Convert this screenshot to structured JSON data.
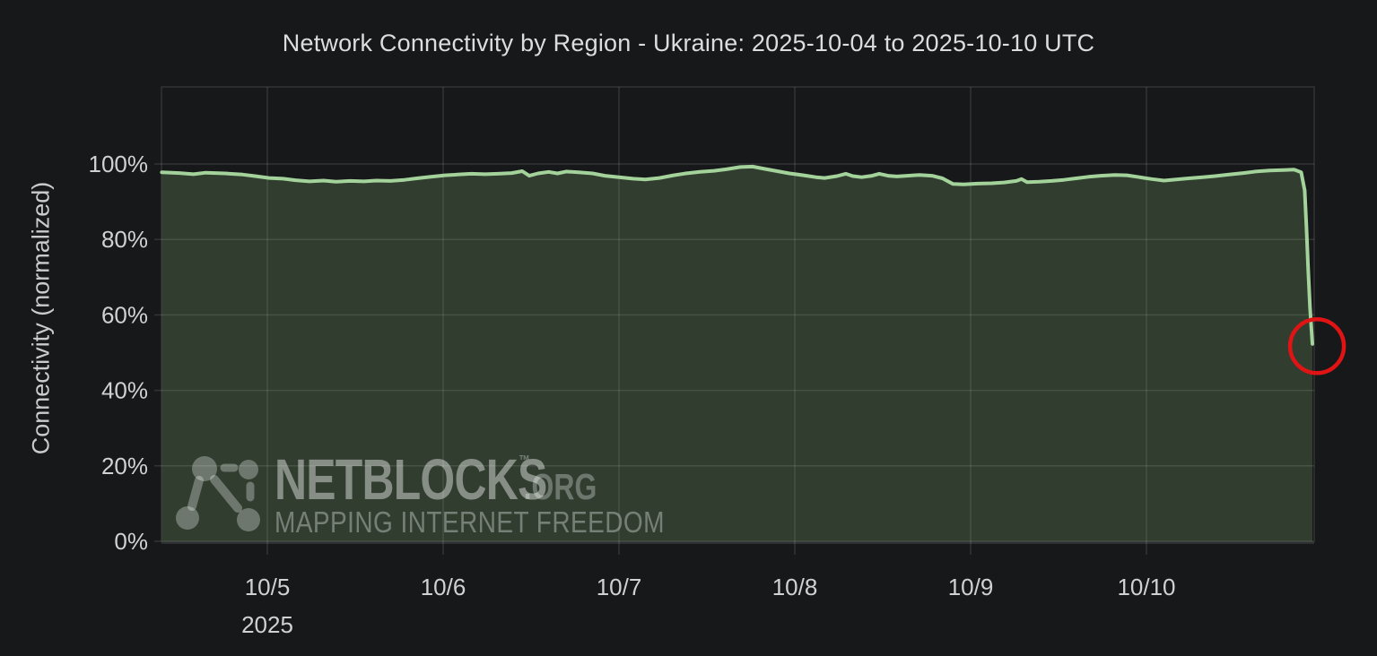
{
  "colors": {
    "background": "#17181a",
    "grid": "rgba(255,255,255,0.12)",
    "axis_line": "rgba(255,255,255,0.10)",
    "tick_text": "#cfd1d2",
    "title_text": "#dcdddf",
    "y_axis_title_text": "#c9cbcc",
    "line": "#a3d29a",
    "fill": "#8cc57c",
    "annotation": "#e01414",
    "watermark": "rgba(255,255,255,0.36)"
  },
  "watermark": {
    "brand": "NETBLOCKS",
    "tm": "TM",
    "org": ".ORG",
    "tagline": "MAPPING INTERNET FREEDOM"
  },
  "chart_data": {
    "type": "area",
    "title": "Network Connectivity by Region - Ukraine: 2025-10-04 to 2025-10-10 UTC",
    "xlabel": "",
    "ylabel": "Connectivity (normalized)",
    "grid": true,
    "legend": "none",
    "ylim": [
      0,
      120
    ],
    "x_unit": "decimal days since 2025-10-04 00:00 UTC",
    "xlim": [
      0.398,
      6.944
    ],
    "y_ticks": [
      {
        "value": 0,
        "label": "0%"
      },
      {
        "value": 20,
        "label": "20%"
      },
      {
        "value": 40,
        "label": "40%"
      },
      {
        "value": 60,
        "label": "60%"
      },
      {
        "value": 80,
        "label": "80%"
      },
      {
        "value": 100,
        "label": "100%"
      }
    ],
    "x_ticks": [
      {
        "t": 1,
        "label": "10/5",
        "sub": "2025"
      },
      {
        "t": 2,
        "label": "10/6"
      },
      {
        "t": 3,
        "label": "10/7"
      },
      {
        "t": 4,
        "label": "10/8"
      },
      {
        "t": 5,
        "label": "10/9"
      },
      {
        "t": 6,
        "label": "10/10"
      }
    ],
    "series": [
      {
        "name": "Ukraine network connectivity (%)",
        "color": "#a3d29a",
        "fill_color": "#8cc57c",
        "fill_opacity": 0.22,
        "points": [
          [
            0.4,
            97.8
          ],
          [
            0.5,
            97.6
          ],
          [
            0.58,
            97.3
          ],
          [
            0.65,
            97.7
          ],
          [
            0.76,
            97.5
          ],
          [
            0.86,
            97.2
          ],
          [
            0.93,
            96.8
          ],
          [
            1.01,
            96.3
          ],
          [
            1.09,
            96.1
          ],
          [
            1.16,
            95.7
          ],
          [
            1.24,
            95.4
          ],
          [
            1.32,
            95.6
          ],
          [
            1.39,
            95.3
          ],
          [
            1.47,
            95.5
          ],
          [
            1.55,
            95.4
          ],
          [
            1.62,
            95.6
          ],
          [
            1.7,
            95.5
          ],
          [
            1.78,
            95.8
          ],
          [
            1.85,
            96.2
          ],
          [
            1.93,
            96.6
          ],
          [
            2.01,
            97.0
          ],
          [
            2.08,
            97.2
          ],
          [
            2.16,
            97.4
          ],
          [
            2.24,
            97.3
          ],
          [
            2.31,
            97.4
          ],
          [
            2.39,
            97.6
          ],
          [
            2.45,
            98.1
          ],
          [
            2.49,
            96.9
          ],
          [
            2.54,
            97.5
          ],
          [
            2.6,
            97.9
          ],
          [
            2.65,
            97.5
          ],
          [
            2.7,
            98.0
          ],
          [
            2.77,
            97.8
          ],
          [
            2.85,
            97.5
          ],
          [
            2.92,
            96.9
          ],
          [
            3.0,
            96.5
          ],
          [
            3.08,
            96.1
          ],
          [
            3.15,
            95.9
          ],
          [
            3.23,
            96.3
          ],
          [
            3.31,
            97.0
          ],
          [
            3.38,
            97.5
          ],
          [
            3.46,
            97.9
          ],
          [
            3.54,
            98.2
          ],
          [
            3.61,
            98.6
          ],
          [
            3.69,
            99.2
          ],
          [
            3.76,
            99.3
          ],
          [
            3.82,
            98.8
          ],
          [
            3.89,
            98.2
          ],
          [
            3.97,
            97.5
          ],
          [
            4.05,
            97.0
          ],
          [
            4.12,
            96.5
          ],
          [
            4.17,
            96.3
          ],
          [
            4.24,
            96.8
          ],
          [
            4.29,
            97.4
          ],
          [
            4.33,
            96.8
          ],
          [
            4.38,
            96.5
          ],
          [
            4.44,
            96.9
          ],
          [
            4.48,
            97.4
          ],
          [
            4.53,
            96.9
          ],
          [
            4.58,
            96.7
          ],
          [
            4.64,
            96.9
          ],
          [
            4.71,
            97.1
          ],
          [
            4.78,
            96.9
          ],
          [
            4.84,
            96.2
          ],
          [
            4.9,
            94.7
          ],
          [
            4.96,
            94.6
          ],
          [
            5.04,
            94.8
          ],
          [
            5.12,
            94.9
          ],
          [
            5.19,
            95.1
          ],
          [
            5.26,
            95.5
          ],
          [
            5.29,
            96.0
          ],
          [
            5.32,
            95.2
          ],
          [
            5.39,
            95.3
          ],
          [
            5.46,
            95.5
          ],
          [
            5.53,
            95.8
          ],
          [
            5.6,
            96.2
          ],
          [
            5.67,
            96.6
          ],
          [
            5.74,
            96.9
          ],
          [
            5.82,
            97.1
          ],
          [
            5.89,
            97.0
          ],
          [
            5.96,
            96.5
          ],
          [
            6.03,
            96.0
          ],
          [
            6.1,
            95.6
          ],
          [
            6.17,
            95.9
          ],
          [
            6.24,
            96.2
          ],
          [
            6.32,
            96.5
          ],
          [
            6.39,
            96.8
          ],
          [
            6.47,
            97.2
          ],
          [
            6.55,
            97.6
          ],
          [
            6.62,
            98.0
          ],
          [
            6.7,
            98.3
          ],
          [
            6.78,
            98.4
          ],
          [
            6.84,
            98.5
          ],
          [
            6.88,
            97.8
          ],
          [
            6.9,
            93.0
          ],
          [
            6.91,
            83.0
          ],
          [
            6.92,
            72.0
          ],
          [
            6.93,
            62.0
          ],
          [
            6.944,
            52.3
          ]
        ]
      }
    ],
    "annotations": [
      {
        "type": "circle",
        "t": 6.97,
        "value": 51.7,
        "radius_px": 30,
        "stroke_px": 4.5,
        "color": "#e01414"
      }
    ]
  }
}
